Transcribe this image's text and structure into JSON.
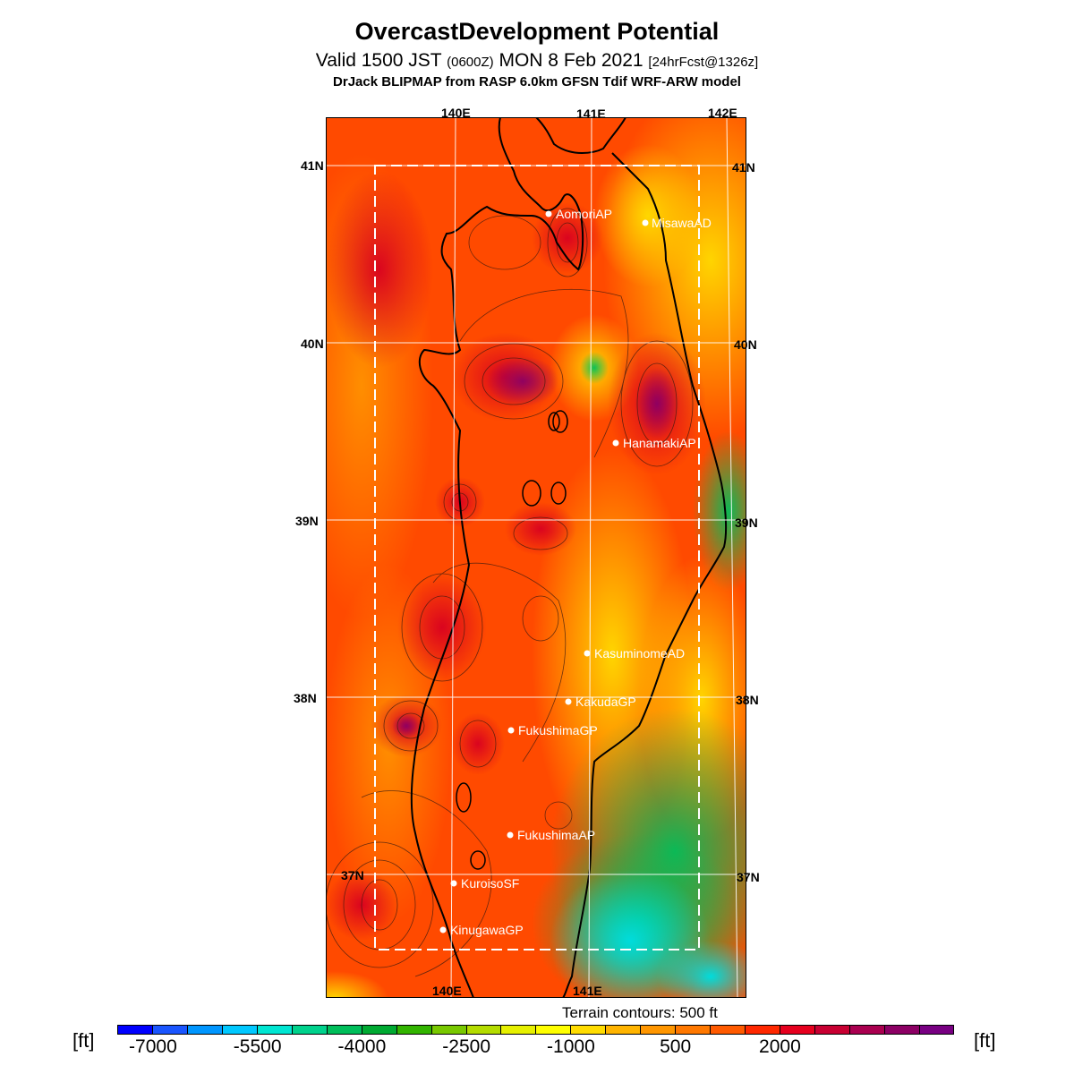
{
  "title": "OvercastDevelopment Potential",
  "subtitle": {
    "valid": "Valid 1500 JST",
    "utc": "(0600Z)",
    "date": "MON 8 Feb 2021",
    "fcst": "[24hrFcst@1326z]"
  },
  "model_line": "DrJack BLIPMAP from RASP 6.0km GFSN Tdif WRF-ARW model",
  "terrain_note": "Terrain contours: 500 ft",
  "unit_label": "[ft]",
  "lon_labels": [
    "140E",
    "141E",
    "142E"
  ],
  "lat_labels": [
    "41N",
    "40N",
    "39N",
    "38N",
    "37N"
  ],
  "colorbar": {
    "colors": [
      "#0000ff",
      "#1a55ff",
      "#0096ff",
      "#00c8ff",
      "#00e6d2",
      "#00d28c",
      "#00be5a",
      "#00aa32",
      "#32b400",
      "#78c800",
      "#b4dc00",
      "#e6f000",
      "#ffff00",
      "#ffdc00",
      "#ffb400",
      "#ff9600",
      "#ff7800",
      "#ff5a00",
      "#ff2800",
      "#e6001e",
      "#c80032",
      "#aa0050",
      "#8c0064",
      "#780082"
    ],
    "labels": [
      "-7000",
      "-5500",
      "-4000",
      "-2500",
      "-1000",
      "500",
      "2000"
    ]
  },
  "stations": [
    {
      "name": "AomoriAP"
    },
    {
      "name": "MisawaAD"
    },
    {
      "name": "HanamakiAP"
    },
    {
      "name": "KasuminomeAD"
    },
    {
      "name": "KakudaGP"
    },
    {
      "name": "FukushimaGP"
    },
    {
      "name": "FukushimaAP"
    },
    {
      "name": "KuroisoSF"
    },
    {
      "name": "KinugawaGP"
    }
  ]
}
